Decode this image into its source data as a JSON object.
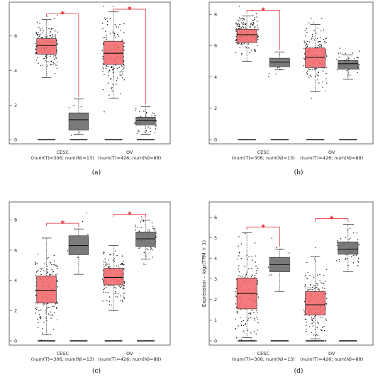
{
  "colors": {
    "tumor": "#f36b6f",
    "normal": "#6d6d6d",
    "sig_line": "#e8202a",
    "frame": "#444444"
  },
  "chart_data": [
    {
      "type": "boxplot",
      "panel_label": "(a)",
      "ylabel": "",
      "ylim": [
        0,
        7.8
      ],
      "yticks": [
        0,
        2,
        4,
        6
      ],
      "categories": [
        "CESC",
        "OV"
      ],
      "category_sub": [
        "(num(T)=306; num(N)=13)",
        "(num(T)=426; num(N)=88)"
      ],
      "significance": [
        "*",
        "*"
      ],
      "series": [
        {
          "group": "tumor",
          "boxes": [
            {
              "q1": 4.95,
              "median": 5.45,
              "q3": 5.85,
              "whisker_low": 3.6,
              "whisker_high": 6.95
            },
            {
              "q1": 4.35,
              "median": 5.0,
              "q3": 5.7,
              "whisker_low": 2.4,
              "whisker_high": 7.4
            }
          ]
        },
        {
          "group": "normal",
          "boxes": [
            {
              "q1": 0.55,
              "median": 1.15,
              "q3": 1.55,
              "whisker_low": 0.3,
              "whisker_high": 2.35
            },
            {
              "q1": 0.85,
              "median": 1.1,
              "q3": 1.3,
              "whisker_low": 0.3,
              "whisker_high": 1.9
            }
          ]
        }
      ]
    },
    {
      "type": "boxplot",
      "panel_label": "(b)",
      "ylabel": "",
      "ylim": [
        0,
        8.6
      ],
      "yticks": [
        0,
        2,
        4,
        6,
        8
      ],
      "categories": [
        "CESC",
        "OV"
      ],
      "category_sub": [
        "(num(T)=306; num(N)=13)",
        "(num(T)=426; num(N)=88)"
      ],
      "significance": [
        "*",
        ""
      ],
      "series": [
        {
          "group": "tumor",
          "boxes": [
            {
              "q1": 6.2,
              "median": 6.7,
              "q3": 7.05,
              "whisker_low": 5.0,
              "whisker_high": 7.9
            },
            {
              "q1": 4.6,
              "median": 5.25,
              "q3": 5.85,
              "whisker_low": 3.05,
              "whisker_high": 7.35
            }
          ]
        },
        {
          "group": "normal",
          "boxes": [
            {
              "q1": 4.65,
              "median": 4.95,
              "q3": 5.2,
              "whisker_low": 4.45,
              "whisker_high": 5.6
            },
            {
              "q1": 4.5,
              "median": 4.85,
              "q3": 5.05,
              "whisker_low": 3.85,
              "whisker_high": 5.4
            }
          ]
        }
      ]
    },
    {
      "type": "boxplot",
      "panel_label": "(c)",
      "ylabel": "",
      "ylim": [
        0,
        9.0
      ],
      "yticks": [
        0,
        2,
        4,
        6,
        8
      ],
      "categories": [
        "CESC",
        "OV"
      ],
      "category_sub": [
        "(num(T)=306; num(N)=13)",
        "(num(T)=426; num(N)=88)"
      ],
      "significance": [
        "*",
        "*"
      ],
      "series": [
        {
          "group": "tumor",
          "boxes": [
            {
              "q1": 2.5,
              "median": 3.35,
              "q3": 4.3,
              "whisker_low": 0.4,
              "whisker_high": 6.8
            },
            {
              "q1": 3.7,
              "median": 4.2,
              "q3": 4.8,
              "whisker_low": 2.0,
              "whisker_high": 6.3
            }
          ]
        },
        {
          "group": "normal",
          "boxes": [
            {
              "q1": 5.7,
              "median": 6.3,
              "q3": 6.95,
              "whisker_low": 4.4,
              "whisker_high": 7.4
            },
            {
              "q1": 6.25,
              "median": 6.75,
              "q3": 7.2,
              "whisker_low": 5.4,
              "whisker_high": 8.0
            }
          ]
        }
      ]
    },
    {
      "type": "boxplot",
      "panel_label": "(d)",
      "ylabel": "Expression – log₂(TPM + 1)",
      "ylim": [
        0,
        6.6
      ],
      "yticks": [
        0,
        1,
        2,
        3,
        4,
        5,
        6
      ],
      "categories": [
        "CESC",
        "OV"
      ],
      "category_sub": [
        "(num(T)=306; num(N)=13)",
        "(num(T)=426; num(N)=88)"
      ],
      "significance": [
        "*",
        "*"
      ],
      "series": [
        {
          "group": "tumor",
          "boxes": [
            {
              "q1": 1.55,
              "median": 2.3,
              "q3": 3.05,
              "whisker_low": 0.15,
              "whisker_high": 5.25
            },
            {
              "q1": 1.25,
              "median": 1.75,
              "q3": 2.4,
              "whisker_low": 0.1,
              "whisker_high": 4.1
            }
          ]
        },
        {
          "group": "normal",
          "boxes": [
            {
              "q1": 3.35,
              "median": 3.7,
              "q3": 4.05,
              "whisker_low": 2.4,
              "whisker_high": 4.45
            },
            {
              "q1": 4.2,
              "median": 4.45,
              "q3": 4.8,
              "whisker_low": 3.35,
              "whisker_high": 5.65
            }
          ]
        }
      ]
    }
  ]
}
